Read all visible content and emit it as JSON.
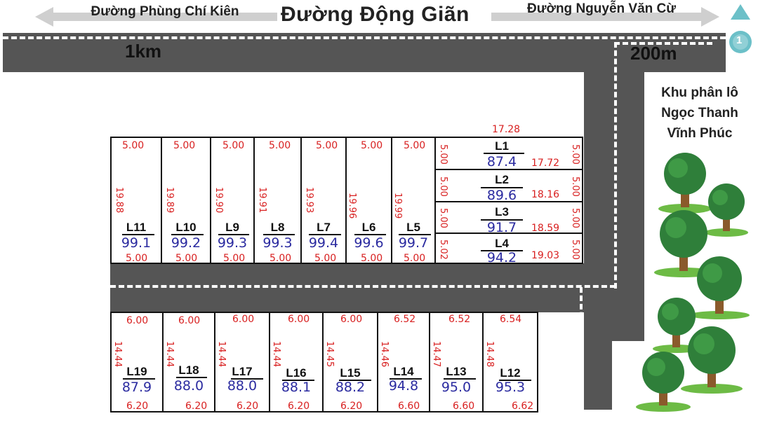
{
  "header": {
    "left_road": "Đường Phùng Chí Kiên",
    "main_road": "Đường Động Giãn",
    "right_road": "Đường Nguyễn Văn Cừ"
  },
  "distances": {
    "left": "1km",
    "right": "200m"
  },
  "project": {
    "line1": "Khu phân lô",
    "line2": "Ngọc Thanh",
    "line3": "Vĩnh Phúc"
  },
  "compass": {
    "icon": "north-arrow-icon",
    "label": "1"
  },
  "colors": {
    "road": "#555555",
    "dimension": "#d82020",
    "area": "#2b2ba0"
  },
  "lots_top_left": [
    {
      "id": "L11",
      "area": "99.1",
      "top": "5.00",
      "bottom": "5.00",
      "side": "19.88"
    },
    {
      "id": "L10",
      "area": "99.2",
      "top": "5.00",
      "bottom": "5.00",
      "side": "19.89"
    },
    {
      "id": "L9",
      "area": "99.3",
      "top": "5.00",
      "bottom": "5.00",
      "side": "19.90"
    },
    {
      "id": "L8",
      "area": "99.3",
      "top": "5.00",
      "bottom": "5.00",
      "side": "19.91"
    },
    {
      "id": "L7",
      "area": "99.4",
      "top": "5.00",
      "bottom": "5.00",
      "side": "19.93"
    },
    {
      "id": "L6",
      "area": "99.6",
      "top": "5.00",
      "bottom": "5.00",
      "side": "19.96"
    },
    {
      "id": "L5",
      "area": "99.7",
      "top": "5.00",
      "bottom": "5.00",
      "side": "19.99"
    }
  ],
  "lots_top_right": [
    {
      "id": "L1",
      "area": "87.4",
      "top": "17.28",
      "right_len": "17.72",
      "left": "5.00",
      "right": "5.00"
    },
    {
      "id": "L2",
      "area": "89.6",
      "right_len": "18.16",
      "left": "5.00",
      "right": "5.00"
    },
    {
      "id": "L3",
      "area": "91.7",
      "right_len": "18.59",
      "left": "5.00",
      "right": "5.00"
    },
    {
      "id": "L4",
      "area": "94.2",
      "right_len": "19.03",
      "left": "5.02",
      "right": "5.00"
    }
  ],
  "lots_bottom": [
    {
      "id": "L19",
      "area": "87.9",
      "top": "6.00",
      "bottom": "6.20",
      "side": "14.44"
    },
    {
      "id": "L18",
      "area": "88.0",
      "top": "6.00",
      "bottom": "6.20",
      "side": "14.44"
    },
    {
      "id": "L17",
      "area": "88.0",
      "top": "6.00",
      "bottom": "6.20",
      "side": "14.44"
    },
    {
      "id": "L16",
      "area": "88.1",
      "top": "6.00",
      "bottom": "6.20",
      "side": "14.44"
    },
    {
      "id": "L15",
      "area": "88.2",
      "top": "6.00",
      "bottom": "6.20",
      "side": "14.45"
    },
    {
      "id": "L14",
      "area": "94.8",
      "top": "6.52",
      "bottom": "6.60",
      "side": "14.46"
    },
    {
      "id": "L13",
      "area": "95.0",
      "top": "6.52",
      "bottom": "6.60",
      "side": "14.47"
    },
    {
      "id": "L12",
      "area": "95.3",
      "top": "6.54",
      "bottom": "6.62",
      "side": "14.48"
    }
  ]
}
